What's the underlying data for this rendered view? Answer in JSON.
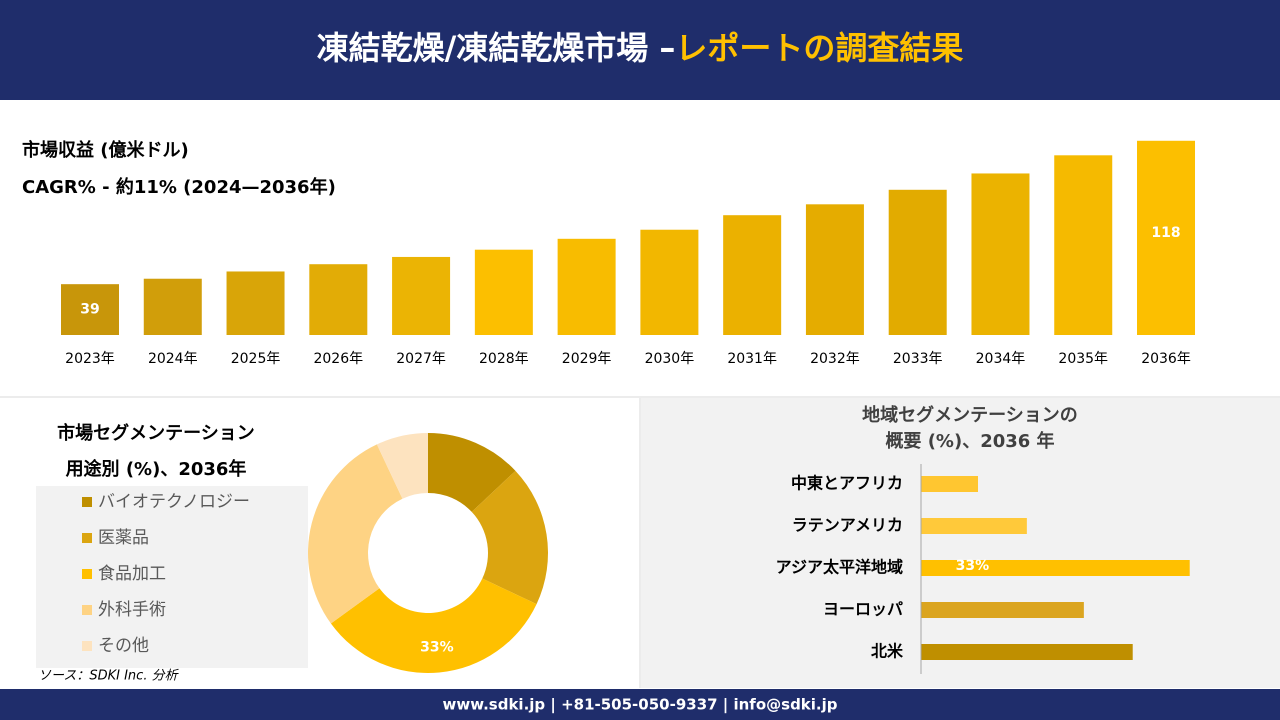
{
  "header": {
    "title_main": "凍結乾燥/凍結乾燥市場 –",
    "title_accent": "レポートの調査結果"
  },
  "chart_data": [
    {
      "type": "bar",
      "title": "市場収益 (億米ドル)",
      "subtitle": "CAGR% - 約11% (2024—2036年)",
      "categories": [
        "2023年",
        "2024年",
        "2025年",
        "2026年",
        "2027年",
        "2028年",
        "2029年",
        "2030年",
        "2031年",
        "2032年",
        "2033年",
        "2034年",
        "2035年",
        "2036年"
      ],
      "values": [
        39,
        42,
        46,
        50,
        54,
        58,
        64,
        69,
        77,
        83,
        91,
        100,
        110,
        118
      ],
      "value_labels": [
        "39",
        null,
        null,
        null,
        null,
        null,
        null,
        null,
        null,
        null,
        null,
        null,
        null,
        "118"
      ],
      "colors": [
        "#c8960a",
        "#d19e0a",
        "#d9a508",
        "#e2ac06",
        "#ebb404",
        "#fcbf00",
        "#f8bc00",
        "#f2b700",
        "#ebb100",
        "#e5ac00",
        "#e2ab00",
        "#ebb300",
        "#f5ba00",
        "#fcbf00"
      ],
      "ylim": [
        11,
        130
      ]
    },
    {
      "type": "donut",
      "title": "市場セグメンテーション",
      "subtitle": "用途別 (%)、2036年",
      "categories": [
        "バイオテクノロジー",
        "医薬品",
        "食品加工",
        "外科手術",
        "その他"
      ],
      "values": [
        13,
        19,
        33,
        28,
        7
      ],
      "value_labels": [
        null,
        null,
        "33%",
        null,
        null
      ],
      "colors": [
        "#bf8f00",
        "#dba510",
        "#ffc000",
        "#fed384",
        "#fde3bf"
      ]
    },
    {
      "type": "hbar",
      "title": "地域セグメンテーションの",
      "subtitle": "概要 (%)、2036 年",
      "categories": [
        "中東とアフリカ",
        "ラテンアメリカ",
        "アジア太平洋地域",
        "ヨーロッパ",
        "北米"
      ],
      "values": [
        7,
        13,
        33,
        20,
        26
      ],
      "value_labels": [
        null,
        null,
        "33%",
        null,
        null
      ],
      "colors": [
        "#ffc630",
        "#ffc93a",
        "#ffc000",
        "#dba520",
        "#bf8f00"
      ],
      "xlim": [
        0,
        35
      ]
    }
  ],
  "source": "ソース：SDKI Inc. 分析",
  "footer": "www.sdki.jp | +81-505-050-9337 | info@sdki.jp"
}
